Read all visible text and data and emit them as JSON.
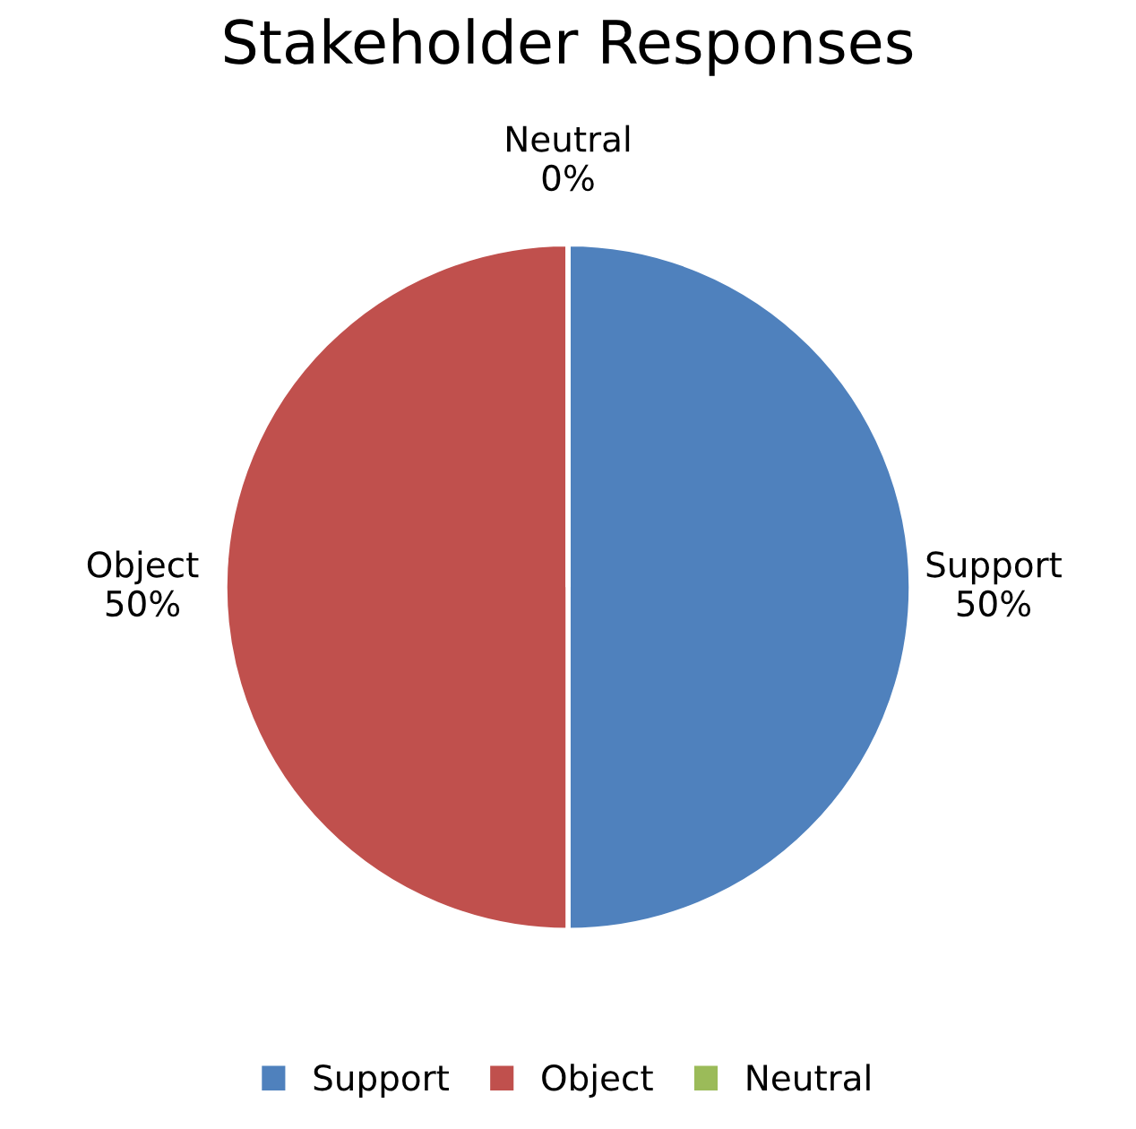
{
  "chart_data": {
    "type": "pie",
    "title": "Stakeholder Responses",
    "categories": [
      "Support",
      "Object",
      "Neutral"
    ],
    "values": [
      50,
      50,
      0
    ],
    "colors": [
      "#4f81bd",
      "#c0504d",
      "#9bbb59"
    ],
    "value_labels": [
      "50%",
      "50%",
      "0%"
    ],
    "legend": "bottom"
  }
}
